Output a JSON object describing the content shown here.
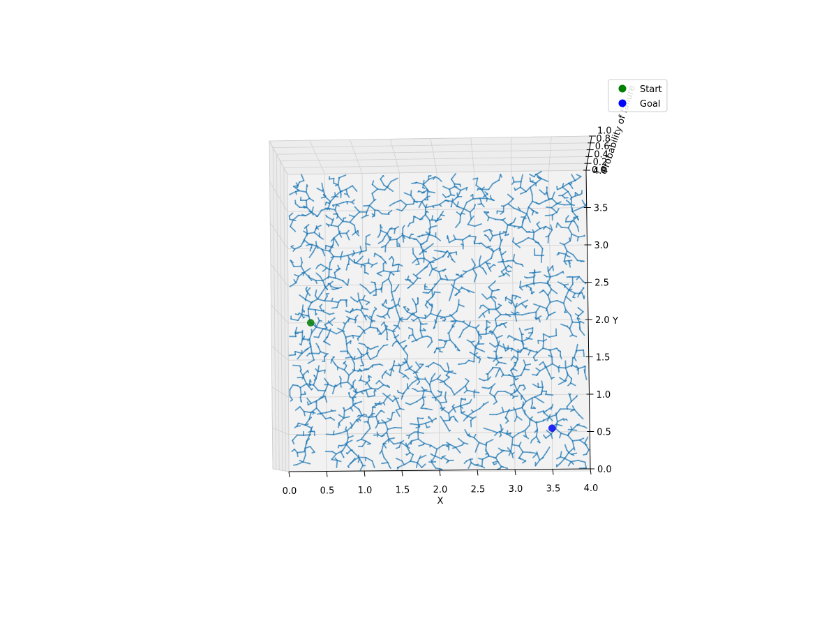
{
  "chart_data": {
    "type": "scatter",
    "projection": "3d",
    "xlabel": "X",
    "ylabel": "Y",
    "zlabel": "Probability of failure",
    "xlim": [
      0.0,
      4.0
    ],
    "ylim": [
      0.0,
      4.0
    ],
    "zlim": [
      0.0,
      1.0
    ],
    "x_ticks": [
      "0.0",
      "0.5",
      "1.0",
      "1.5",
      "2.0",
      "2.5",
      "3.0",
      "3.5",
      "4.0"
    ],
    "y_ticks": [
      "0.0",
      "0.5",
      "1.0",
      "1.5",
      "2.0",
      "2.5",
      "3.0",
      "3.5",
      "4.0"
    ],
    "z_ticks": [
      "0.0",
      "0.2",
      "0.4",
      "0.6",
      "0.8",
      "1.0"
    ],
    "grid": true,
    "legend_position": "top-right",
    "colors": {
      "tree": "#1f77b4",
      "start": "#008000",
      "goal": "#0000ff"
    },
    "start": {
      "x": 0.3,
      "y": 2.0,
      "z": 0.0
    },
    "goal": {
      "x": 3.5,
      "y": 0.55,
      "z": 0.0
    },
    "tree": {
      "description": "RRT exploration tree rooted at start, drawn as many short blue segments",
      "root": {
        "x": 0.3,
        "y": 2.0
      }
    },
    "legend": [
      {
        "label": "Start",
        "color": "#008000"
      },
      {
        "label": "Goal",
        "color": "#0000ff"
      }
    ]
  }
}
